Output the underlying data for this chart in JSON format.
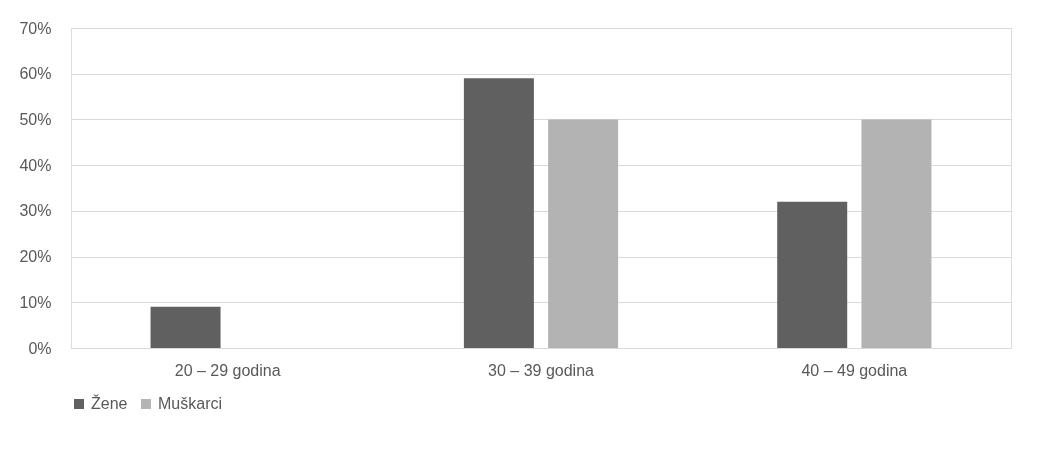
{
  "chart_data": {
    "type": "bar",
    "categories": [
      "20 – 29 godina",
      "30 – 39 godina",
      "40 – 49 godina"
    ],
    "series": [
      {
        "name": "Žene",
        "color": "#606060",
        "values": [
          9,
          59,
          32
        ]
      },
      {
        "name": "Muškarci",
        "color": "#b3b3b3",
        "values": [
          0,
          50,
          50
        ]
      }
    ],
    "ylim": [
      0,
      70
    ],
    "yticks": [
      {
        "value": 0,
        "label": "0%"
      },
      {
        "value": 10,
        "label": "10%"
      },
      {
        "value": 20,
        "label": "20%"
      },
      {
        "value": 30,
        "label": "30%"
      },
      {
        "value": 40,
        "label": "40%"
      },
      {
        "value": 50,
        "label": "50%"
      },
      {
        "value": 60,
        "label": "60%"
      },
      {
        "value": 70,
        "label": "70%"
      }
    ],
    "grid": "y",
    "legend": "bottom"
  }
}
